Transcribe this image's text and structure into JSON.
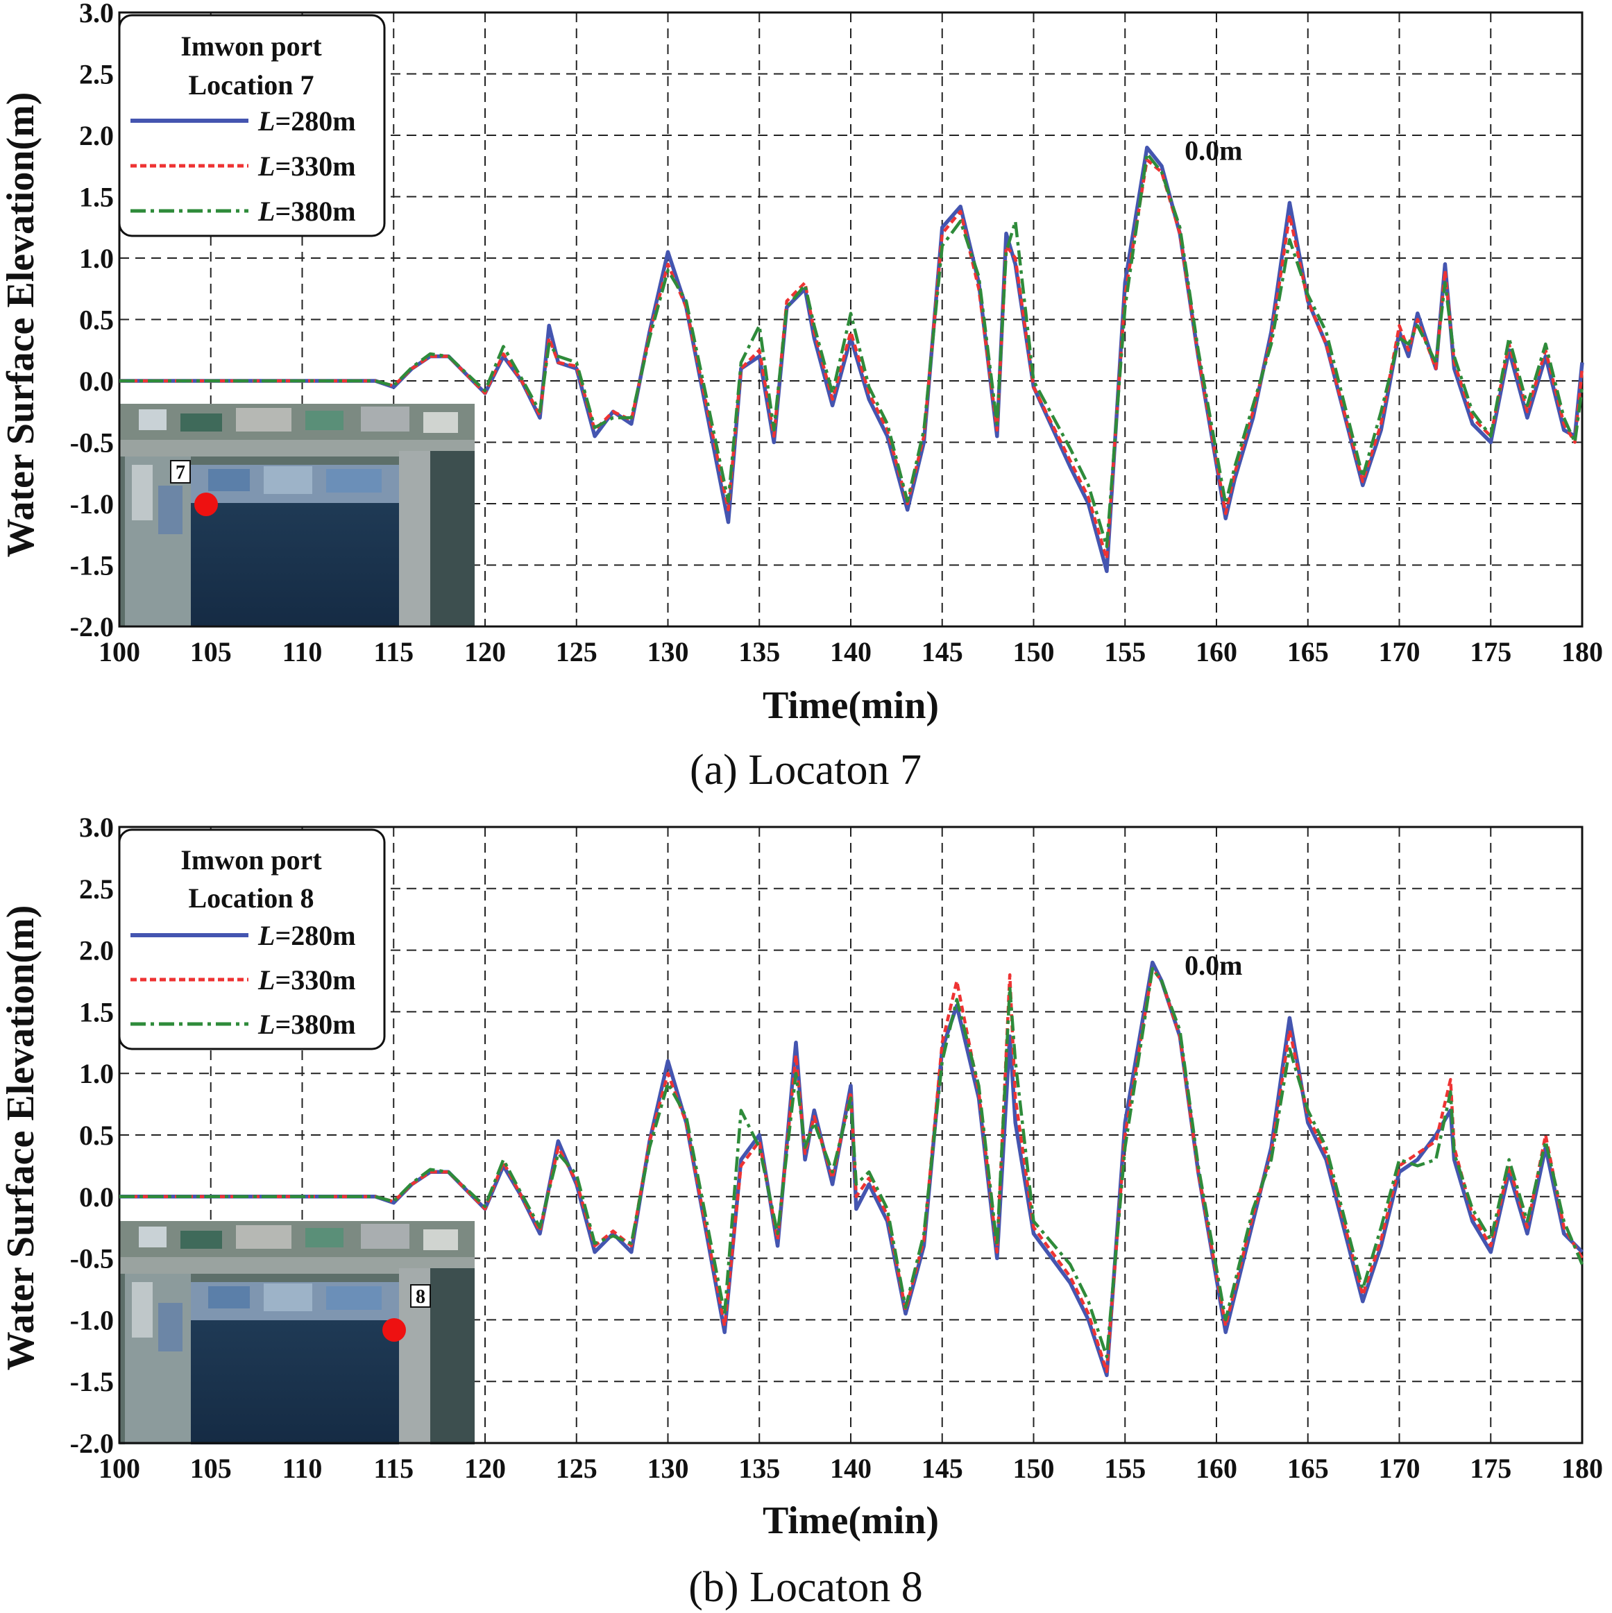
{
  "colors": {
    "L280": "#4455b0",
    "L330": "#ee3333",
    "L380": "#2e8b3a",
    "marker": "#ee1111"
  },
  "inset_icon": "satellite-map-image",
  "chart_data": [
    {
      "type": "line",
      "caption": "(a)  Locaton  7",
      "xlabel": "Time(min)",
      "ylabel": "Water Surface Elevation(m)",
      "xlim": [
        100,
        180
      ],
      "ylim": [
        -2.0,
        3.0
      ],
      "xticks": [
        "100",
        "105",
        "110",
        "115",
        "120",
        "125",
        "130",
        "135",
        "140",
        "145",
        "150",
        "155",
        "160",
        "165",
        "170",
        "175",
        "180"
      ],
      "yticks": [
        "3.0",
        "2.5",
        "2.0",
        "1.5",
        "1.0",
        "0.5",
        "0.0",
        "-0.5",
        "-1.0",
        "-1.5",
        "-2.0"
      ],
      "grid": true,
      "legend_position": "top-left",
      "legend_title": [
        "Imwon port",
        "Location 7"
      ],
      "annotation": "0.0m",
      "annotation_at": [
        157.5,
        1.8
      ],
      "inset": {
        "label": "7",
        "marker_location": "north-west corner of harbor"
      },
      "series": [
        {
          "name_prefix": "L",
          "name_suffix": "=280m",
          "style": "solid",
          "x": [
            100,
            114,
            115,
            116,
            117,
            118,
            119,
            120,
            121,
            122,
            123,
            123.5,
            124,
            125,
            126,
            127,
            128,
            129,
            130,
            131,
            133.3,
            134,
            135,
            135.8,
            136.5,
            137.5,
            138,
            139,
            140,
            141,
            142,
            143.1,
            144,
            145,
            146,
            147,
            148,
            148.5,
            149,
            150,
            152,
            153,
            154,
            155,
            156.2,
            157,
            158,
            159,
            160.5,
            161,
            162,
            163,
            164,
            165,
            166,
            168,
            169,
            170,
            170.5,
            171,
            172,
            172.5,
            173,
            174,
            175,
            176,
            177,
            178,
            179,
            179.6,
            180
          ],
          "y": [
            0,
            0,
            -0.05,
            0.1,
            0.2,
            0.2,
            0.05,
            -0.1,
            0.2,
            0.0,
            -0.3,
            0.45,
            0.15,
            0.1,
            -0.45,
            -0.25,
            -0.35,
            0.4,
            1.05,
            0.6,
            -1.15,
            0.1,
            0.2,
            -0.5,
            0.6,
            0.75,
            0.35,
            -0.2,
            0.35,
            -0.15,
            -0.45,
            -1.05,
            -0.5,
            1.25,
            1.42,
            0.8,
            -0.45,
            1.2,
            0.95,
            -0.05,
            -0.7,
            -1.0,
            -1.55,
            0.8,
            1.9,
            1.75,
            1.2,
            0.2,
            -1.12,
            -0.8,
            -0.3,
            0.4,
            1.45,
            0.65,
            0.3,
            -0.85,
            -0.4,
            0.4,
            0.2,
            0.55,
            0.1,
            0.95,
            0.1,
            -0.35,
            -0.5,
            0.25,
            -0.3,
            0.2,
            -0.4,
            -0.45,
            0.15
          ]
        },
        {
          "name_prefix": "L",
          "name_suffix": "=330m",
          "style": "dashed",
          "x": [
            100,
            114,
            115,
            116,
            117,
            118,
            119,
            120,
            121,
            122,
            123,
            123.5,
            124,
            125,
            126,
            127,
            128,
            129,
            130,
            131,
            133.3,
            134,
            135,
            135.8,
            136.5,
            137.5,
            138,
            139,
            140,
            141,
            142,
            143.1,
            144,
            145,
            146,
            147,
            148,
            148.5,
            149,
            150,
            152,
            153,
            154,
            155,
            156.2,
            157,
            158,
            159,
            160.5,
            161,
            162,
            163,
            164,
            165,
            166,
            168,
            169,
            170,
            170.5,
            171,
            172,
            172.5,
            173,
            174,
            175,
            176,
            177,
            178,
            179,
            179.6,
            180
          ],
          "y": [
            0,
            0,
            -0.04,
            0.1,
            0.2,
            0.2,
            0.05,
            -0.1,
            0.22,
            0.0,
            -0.28,
            0.35,
            0.15,
            0.12,
            -0.4,
            -0.25,
            -0.32,
            0.38,
            0.95,
            0.6,
            -1.05,
            0.1,
            0.25,
            -0.45,
            0.65,
            0.8,
            0.4,
            -0.15,
            0.4,
            -0.1,
            -0.4,
            -1.0,
            -0.45,
            1.2,
            1.38,
            0.75,
            -0.4,
            1.1,
            1.0,
            -0.05,
            -0.65,
            -0.95,
            -1.45,
            0.7,
            1.8,
            1.7,
            1.2,
            0.2,
            -1.08,
            -0.75,
            -0.25,
            0.35,
            1.35,
            0.65,
            0.3,
            -0.82,
            -0.35,
            0.45,
            0.25,
            0.5,
            0.1,
            0.9,
            0.15,
            -0.3,
            -0.45,
            0.3,
            -0.25,
            0.25,
            -0.35,
            -0.5,
            0.1
          ]
        },
        {
          "name_prefix": "L",
          "name_suffix": "=380m",
          "style": "dashdot",
          "x": [
            100,
            114,
            115,
            116,
            117,
            118,
            119,
            120,
            121,
            122,
            123,
            123.5,
            124,
            125,
            126,
            127,
            128,
            129,
            130,
            131,
            133.3,
            134,
            135,
            135.8,
            136.5,
            137.5,
            138,
            139,
            140,
            141,
            142,
            143.1,
            144,
            145,
            146,
            147,
            148,
            148.5,
            149,
            150,
            152,
            153,
            154,
            155,
            156.2,
            157,
            158,
            159,
            160.5,
            161,
            162,
            163,
            164,
            165,
            166,
            168,
            169,
            170,
            170.5,
            171,
            172,
            172.5,
            173,
            174,
            175,
            176,
            177,
            178,
            179,
            179.6,
            180
          ],
          "y": [
            0,
            0,
            -0.04,
            0.11,
            0.22,
            0.2,
            0.06,
            -0.08,
            0.28,
            0.02,
            -0.25,
            0.3,
            0.2,
            0.15,
            -0.38,
            -0.3,
            -0.3,
            0.35,
            0.9,
            0.65,
            -0.98,
            0.15,
            0.45,
            -0.4,
            0.6,
            0.78,
            0.45,
            -0.1,
            0.55,
            -0.05,
            -0.35,
            -0.98,
            -0.4,
            1.1,
            1.3,
            0.85,
            -0.35,
            1.05,
            1.3,
            0.0,
            -0.55,
            -0.85,
            -1.35,
            0.6,
            1.85,
            1.7,
            1.25,
            0.25,
            -1.0,
            -0.7,
            -0.2,
            0.3,
            1.15,
            0.7,
            0.4,
            -0.78,
            -0.25,
            0.35,
            0.3,
            0.45,
            0.15,
            0.8,
            0.2,
            -0.25,
            -0.45,
            0.35,
            -0.2,
            0.3,
            -0.3,
            -0.5,
            -0.05
          ]
        }
      ]
    },
    {
      "type": "line",
      "caption": "(b)  Locaton  8",
      "xlabel": "Time(min)",
      "ylabel": "Water Surface Elevation(m)",
      "xlim": [
        100,
        180
      ],
      "ylim": [
        -2.0,
        3.0
      ],
      "xticks": [
        "100",
        "105",
        "110",
        "115",
        "120",
        "125",
        "130",
        "135",
        "140",
        "145",
        "150",
        "155",
        "160",
        "165",
        "170",
        "175",
        "180"
      ],
      "yticks": [
        "3.0",
        "2.5",
        "2.0",
        "1.5",
        "1.0",
        "0.5",
        "0.0",
        "-0.5",
        "-1.0",
        "-1.5",
        "-2.0"
      ],
      "grid": true,
      "legend_position": "top-left",
      "legend_title": [
        "Imwon port",
        "Location 8"
      ],
      "annotation": "0.0m",
      "annotation_at": [
        157.5,
        1.8
      ],
      "inset": {
        "label": "8",
        "marker_location": "east side of harbor"
      },
      "series": [
        {
          "name_prefix": "L",
          "name_suffix": "=280m",
          "style": "solid",
          "x": [
            100,
            114,
            115,
            116,
            117,
            118,
            119,
            120,
            121,
            122,
            123,
            124,
            125,
            126,
            127,
            128,
            129,
            130,
            131,
            133.1,
            134,
            135,
            136,
            137,
            137.5,
            138,
            139,
            140,
            140.3,
            141,
            142,
            143,
            144,
            145,
            145.8,
            147,
            148,
            148.7,
            149,
            150,
            152,
            153,
            154,
            155,
            156.5,
            157,
            158,
            159,
            160.5,
            161,
            162,
            163,
            164,
            165,
            166,
            168,
            169,
            170,
            171,
            172,
            172.8,
            173,
            174,
            175,
            176,
            177,
            178,
            179,
            180
          ],
          "y": [
            0,
            0,
            -0.05,
            0.1,
            0.2,
            0.2,
            0.05,
            -0.1,
            0.25,
            0.0,
            -0.3,
            0.45,
            0.1,
            -0.45,
            -0.3,
            -0.45,
            0.45,
            1.1,
            0.6,
            -1.1,
            0.3,
            0.5,
            -0.4,
            1.25,
            0.3,
            0.7,
            0.1,
            0.9,
            -0.1,
            0.1,
            -0.2,
            -0.95,
            -0.4,
            1.2,
            1.55,
            0.8,
            -0.5,
            1.3,
            0.6,
            -0.3,
            -0.7,
            -1.0,
            -1.45,
            0.6,
            1.9,
            1.75,
            1.3,
            0.2,
            -1.1,
            -0.8,
            -0.2,
            0.4,
            1.45,
            0.6,
            0.3,
            -0.85,
            -0.4,
            0.2,
            0.3,
            0.5,
            0.7,
            0.3,
            -0.2,
            -0.45,
            0.2,
            -0.3,
            0.4,
            -0.3,
            -0.45
          ]
        },
        {
          "name_prefix": "L",
          "name_suffix": "=330m",
          "style": "dashed",
          "x": [
            100,
            114,
            115,
            116,
            117,
            118,
            119,
            120,
            121,
            122,
            123,
            124,
            125,
            126,
            127,
            128,
            129,
            130,
            131,
            133.1,
            134,
            135,
            136,
            137,
            137.5,
            138,
            139,
            140,
            140.3,
            141,
            142,
            143,
            144,
            145,
            145.8,
            147,
            148,
            148.7,
            149,
            150,
            152,
            153,
            154,
            155,
            156.5,
            157,
            158,
            159,
            160.5,
            161,
            162,
            163,
            164,
            165,
            166,
            168,
            169,
            170,
            171,
            172,
            172.8,
            173,
            174,
            175,
            176,
            177,
            178,
            179,
            180
          ],
          "y": [
            0,
            0,
            -0.04,
            0.1,
            0.2,
            0.2,
            0.05,
            -0.1,
            0.28,
            0.0,
            -0.28,
            0.4,
            0.12,
            -0.4,
            -0.28,
            -0.4,
            0.45,
            1.0,
            0.6,
            -1.05,
            0.25,
            0.45,
            -0.35,
            1.15,
            0.35,
            0.65,
            0.15,
            0.85,
            0.0,
            0.15,
            -0.15,
            -0.92,
            -0.35,
            1.25,
            1.75,
            0.85,
            -0.45,
            1.8,
            0.8,
            -0.25,
            -0.65,
            -0.95,
            -1.42,
            0.5,
            1.85,
            1.75,
            1.3,
            0.2,
            -1.05,
            -0.75,
            -0.15,
            0.35,
            1.35,
            0.65,
            0.35,
            -0.8,
            -0.35,
            0.25,
            0.35,
            0.45,
            0.95,
            0.4,
            -0.15,
            -0.4,
            0.25,
            -0.25,
            0.5,
            -0.25,
            -0.5
          ]
        },
        {
          "name_prefix": "L",
          "name_suffix": "=380m",
          "style": "dashdot",
          "x": [
            100,
            114,
            115,
            116,
            117,
            118,
            119,
            120,
            121,
            122,
            123,
            124,
            125,
            126,
            127,
            128,
            129,
            130,
            131,
            133.1,
            134,
            135,
            136,
            137,
            137.5,
            138,
            139,
            140,
            140.3,
            141,
            142,
            143,
            144,
            145,
            145.8,
            147,
            148,
            148.7,
            149,
            150,
            152,
            153,
            154,
            155,
            156.5,
            157,
            158,
            159,
            160.5,
            161,
            162,
            163,
            164,
            165,
            166,
            168,
            169,
            170,
            171,
            172,
            172.8,
            173,
            174,
            175,
            176,
            177,
            178,
            179,
            180
          ],
          "y": [
            0,
            0,
            -0.04,
            0.11,
            0.22,
            0.2,
            0.06,
            -0.08,
            0.3,
            0.02,
            -0.25,
            0.35,
            0.18,
            -0.38,
            -0.32,
            -0.38,
            0.4,
            0.92,
            0.65,
            -0.95,
            0.7,
            0.4,
            -0.3,
            1.0,
            0.4,
            0.6,
            0.2,
            0.8,
            0.1,
            0.2,
            -0.1,
            -0.9,
            -0.3,
            1.1,
            1.6,
            0.9,
            -0.4,
            1.7,
            1.1,
            -0.2,
            -0.55,
            -0.85,
            -1.3,
            0.4,
            1.85,
            1.75,
            1.35,
            0.25,
            -1.0,
            -0.7,
            -0.1,
            0.3,
            1.2,
            0.7,
            0.4,
            -0.75,
            -0.25,
            0.3,
            0.25,
            0.3,
            0.85,
            0.35,
            -0.1,
            -0.35,
            0.3,
            -0.2,
            0.45,
            -0.2,
            -0.55
          ]
        }
      ]
    }
  ]
}
